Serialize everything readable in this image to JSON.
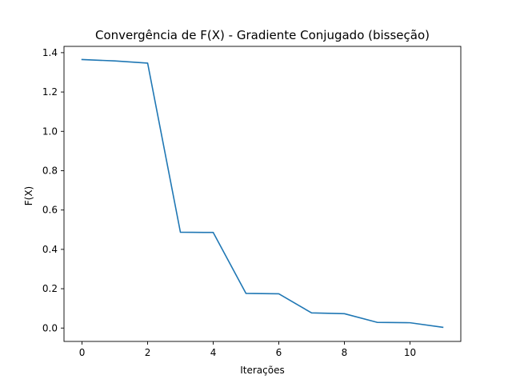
{
  "chart_data": {
    "type": "line",
    "title": "Convergência de F(X) - Gradiente Conjugado (bisseção)",
    "xlabel": "Iterações",
    "ylabel": "F(X)",
    "xlim": [
      -0.55,
      11.55
    ],
    "ylim": [
      -0.068,
      1.432
    ],
    "x_ticks": [
      0,
      2,
      4,
      6,
      8,
      10
    ],
    "x_tick_labels": [
      "0",
      "2",
      "4",
      "6",
      "8",
      "10"
    ],
    "y_ticks": [
      0.0,
      0.2,
      0.4,
      0.6,
      0.8,
      1.0,
      1.2,
      1.4
    ],
    "y_tick_labels": [
      "0.0",
      "0.2",
      "0.4",
      "0.6",
      "0.8",
      "1.0",
      "1.2",
      "1.4"
    ],
    "grid": false,
    "series": [
      {
        "color": "#1f77b4",
        "x": [
          0,
          1,
          2,
          3,
          4,
          5,
          6,
          7,
          8,
          9,
          10,
          11
        ],
        "y": [
          1.365,
          1.358,
          1.347,
          0.487,
          0.486,
          0.176,
          0.174,
          0.077,
          0.073,
          0.029,
          0.027,
          0.004
        ]
      }
    ]
  }
}
